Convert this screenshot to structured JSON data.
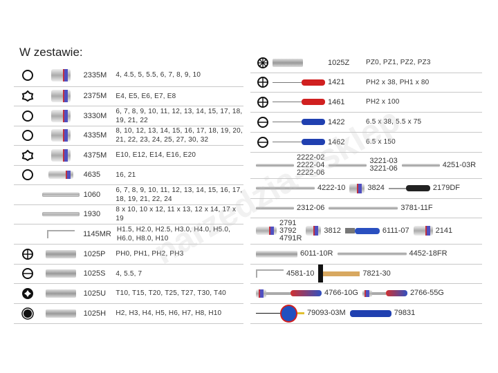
{
  "title": "W zestawie:",
  "watermark": "narzedzia-esklep",
  "left": {
    "rows": [
      {
        "symbol": "hex-ring",
        "tool": "socket",
        "code": "2335M",
        "desc": "4, 4.5, 5, 5.5, 6, 7, 8, 9, 10"
      },
      {
        "symbol": "torx-ring",
        "tool": "socket",
        "code": "2375M",
        "desc": "E4, E5, E6, E7, E8"
      },
      {
        "symbol": "hex-ring",
        "tool": "socket",
        "code": "3330M",
        "desc": "6, 7, 8, 9, 10, 11, 12, 13, 14, 15, 17, 18, 19, 21, 22"
      },
      {
        "symbol": "hex-ring",
        "tool": "socket",
        "code": "4335M",
        "desc": "8, 10, 12, 13, 14, 15, 16, 17, 18, 19, 20, 21, 22, 23, 24, 25, 27, 30, 32"
      },
      {
        "symbol": "torx-ring",
        "tool": "socket",
        "code": "4375M",
        "desc": "E10, E12, E14, E16, E20"
      },
      {
        "symbol": "hex-ring",
        "tool": "socket-long",
        "code": "4635",
        "desc": "16, 21"
      },
      {
        "symbol": "",
        "tool": "combination-wrench",
        "code": "1060",
        "desc": "6, 7, 8, 9, 10, 11, 12, 13, 14, 15, 16, 17, 18, 19, 21, 22, 24"
      },
      {
        "symbol": "",
        "tool": "open-end-wrench",
        "code": "1930",
        "desc": "8 x 10, 10 x 12, 11 x 13, 12 x 14, 17 x 19"
      },
      {
        "symbol": "",
        "tool": "hex-key",
        "code": "1145MR",
        "desc": "H1.5, H2.0, H2.5, H3.0, H4.0, H5.0, H6.0, H8.0, H10"
      },
      {
        "symbol": "phillips",
        "tool": "bit",
        "code": "1025P",
        "desc": "PH0, PH1, PH2, PH3"
      },
      {
        "symbol": "slotted",
        "tool": "bit",
        "code": "1025S",
        "desc": "4, 5.5, 7"
      },
      {
        "symbol": "torx",
        "tool": "bit",
        "code": "1025U",
        "desc": "T10, T15, T20, T25, T27, T30, T40"
      },
      {
        "symbol": "hex",
        "tool": "bit",
        "code": "1025H",
        "desc": "H2, H3, H4, H5, H6, H7, H8, H10"
      }
    ]
  },
  "right": {
    "rows": [
      {
        "symbol": "pozidriv",
        "tool": "bit",
        "code": "1025Z",
        "desc": "PZ0, PZ1, PZ2, PZ3"
      },
      {
        "symbol": "phillips",
        "tool": "screwdriver-red",
        "code": "1421",
        "desc": "PH2 x 38, PH1 x 80"
      },
      {
        "symbol": "phillips",
        "tool": "screwdriver-red",
        "code": "1461",
        "desc": "PH2 x 100"
      },
      {
        "symbol": "slotted",
        "tool": "screwdriver-blue",
        "code": "1422",
        "desc": "6.5 x 38, 5.5 x 75"
      },
      {
        "symbol": "slotted",
        "tool": "screwdriver-blue",
        "code": "1462",
        "desc": "6.5 x 150"
      },
      {
        "items": [
          {
            "tool": "extension-bar",
            "codes": [
              "2222-02",
              "2222-04",
              "2222-06"
            ]
          },
          {
            "tool": "extension-bar",
            "codes": [
              "3221-03",
              "3221-06"
            ]
          },
          {
            "tool": "extension-bar",
            "codes": [
              "4251-03R"
            ]
          }
        ]
      },
      {
        "items": [
          {
            "tool": "sliding-t-bar",
            "codes": [
              "4222-10"
            ]
          },
          {
            "tool": "adaptor",
            "codes": [
              "3824"
            ]
          },
          {
            "tool": "spinner-handle",
            "codes": [
              "2179DF"
            ]
          }
        ]
      },
      {
        "items": [
          {
            "tool": "extension-bar",
            "codes": [
              "2312-06"
            ]
          },
          {
            "tool": "flex-handle",
            "codes": [
              "3781-11F"
            ]
          }
        ]
      },
      {
        "items": [
          {
            "tool": "universal-joint",
            "codes": [
              "2791",
              "3792",
              "4791R"
            ]
          },
          {
            "tool": "adaptor",
            "codes": [
              "3812"
            ]
          },
          {
            "tool": "pliers",
            "codes": [
              "6111-07"
            ]
          },
          {
            "tool": "spark-plug-socket",
            "codes": [
              "2141"
            ]
          }
        ]
      },
      {
        "items": [
          {
            "tool": "locking-pliers",
            "codes": [
              "6011-10R"
            ]
          },
          {
            "tool": "flex-handle",
            "codes": [
              "4452-18FR"
            ]
          }
        ]
      },
      {
        "items": [
          {
            "tool": "hex-key",
            "codes": [
              "4581-10"
            ]
          },
          {
            "tool": "hammer",
            "codes": [
              "7821-30"
            ]
          }
        ]
      },
      {
        "items": [
          {
            "tool": "ratchet",
            "codes": [
              "4766-10G"
            ]
          },
          {
            "tool": "ratchet-small",
            "codes": [
              "2766-55G"
            ]
          }
        ]
      },
      {
        "items": [
          {
            "tool": "tape-measure",
            "codes": [
              "79093-03M"
            ]
          },
          {
            "tool": "utility-knife",
            "codes": [
              "79831"
            ]
          }
        ]
      }
    ]
  }
}
